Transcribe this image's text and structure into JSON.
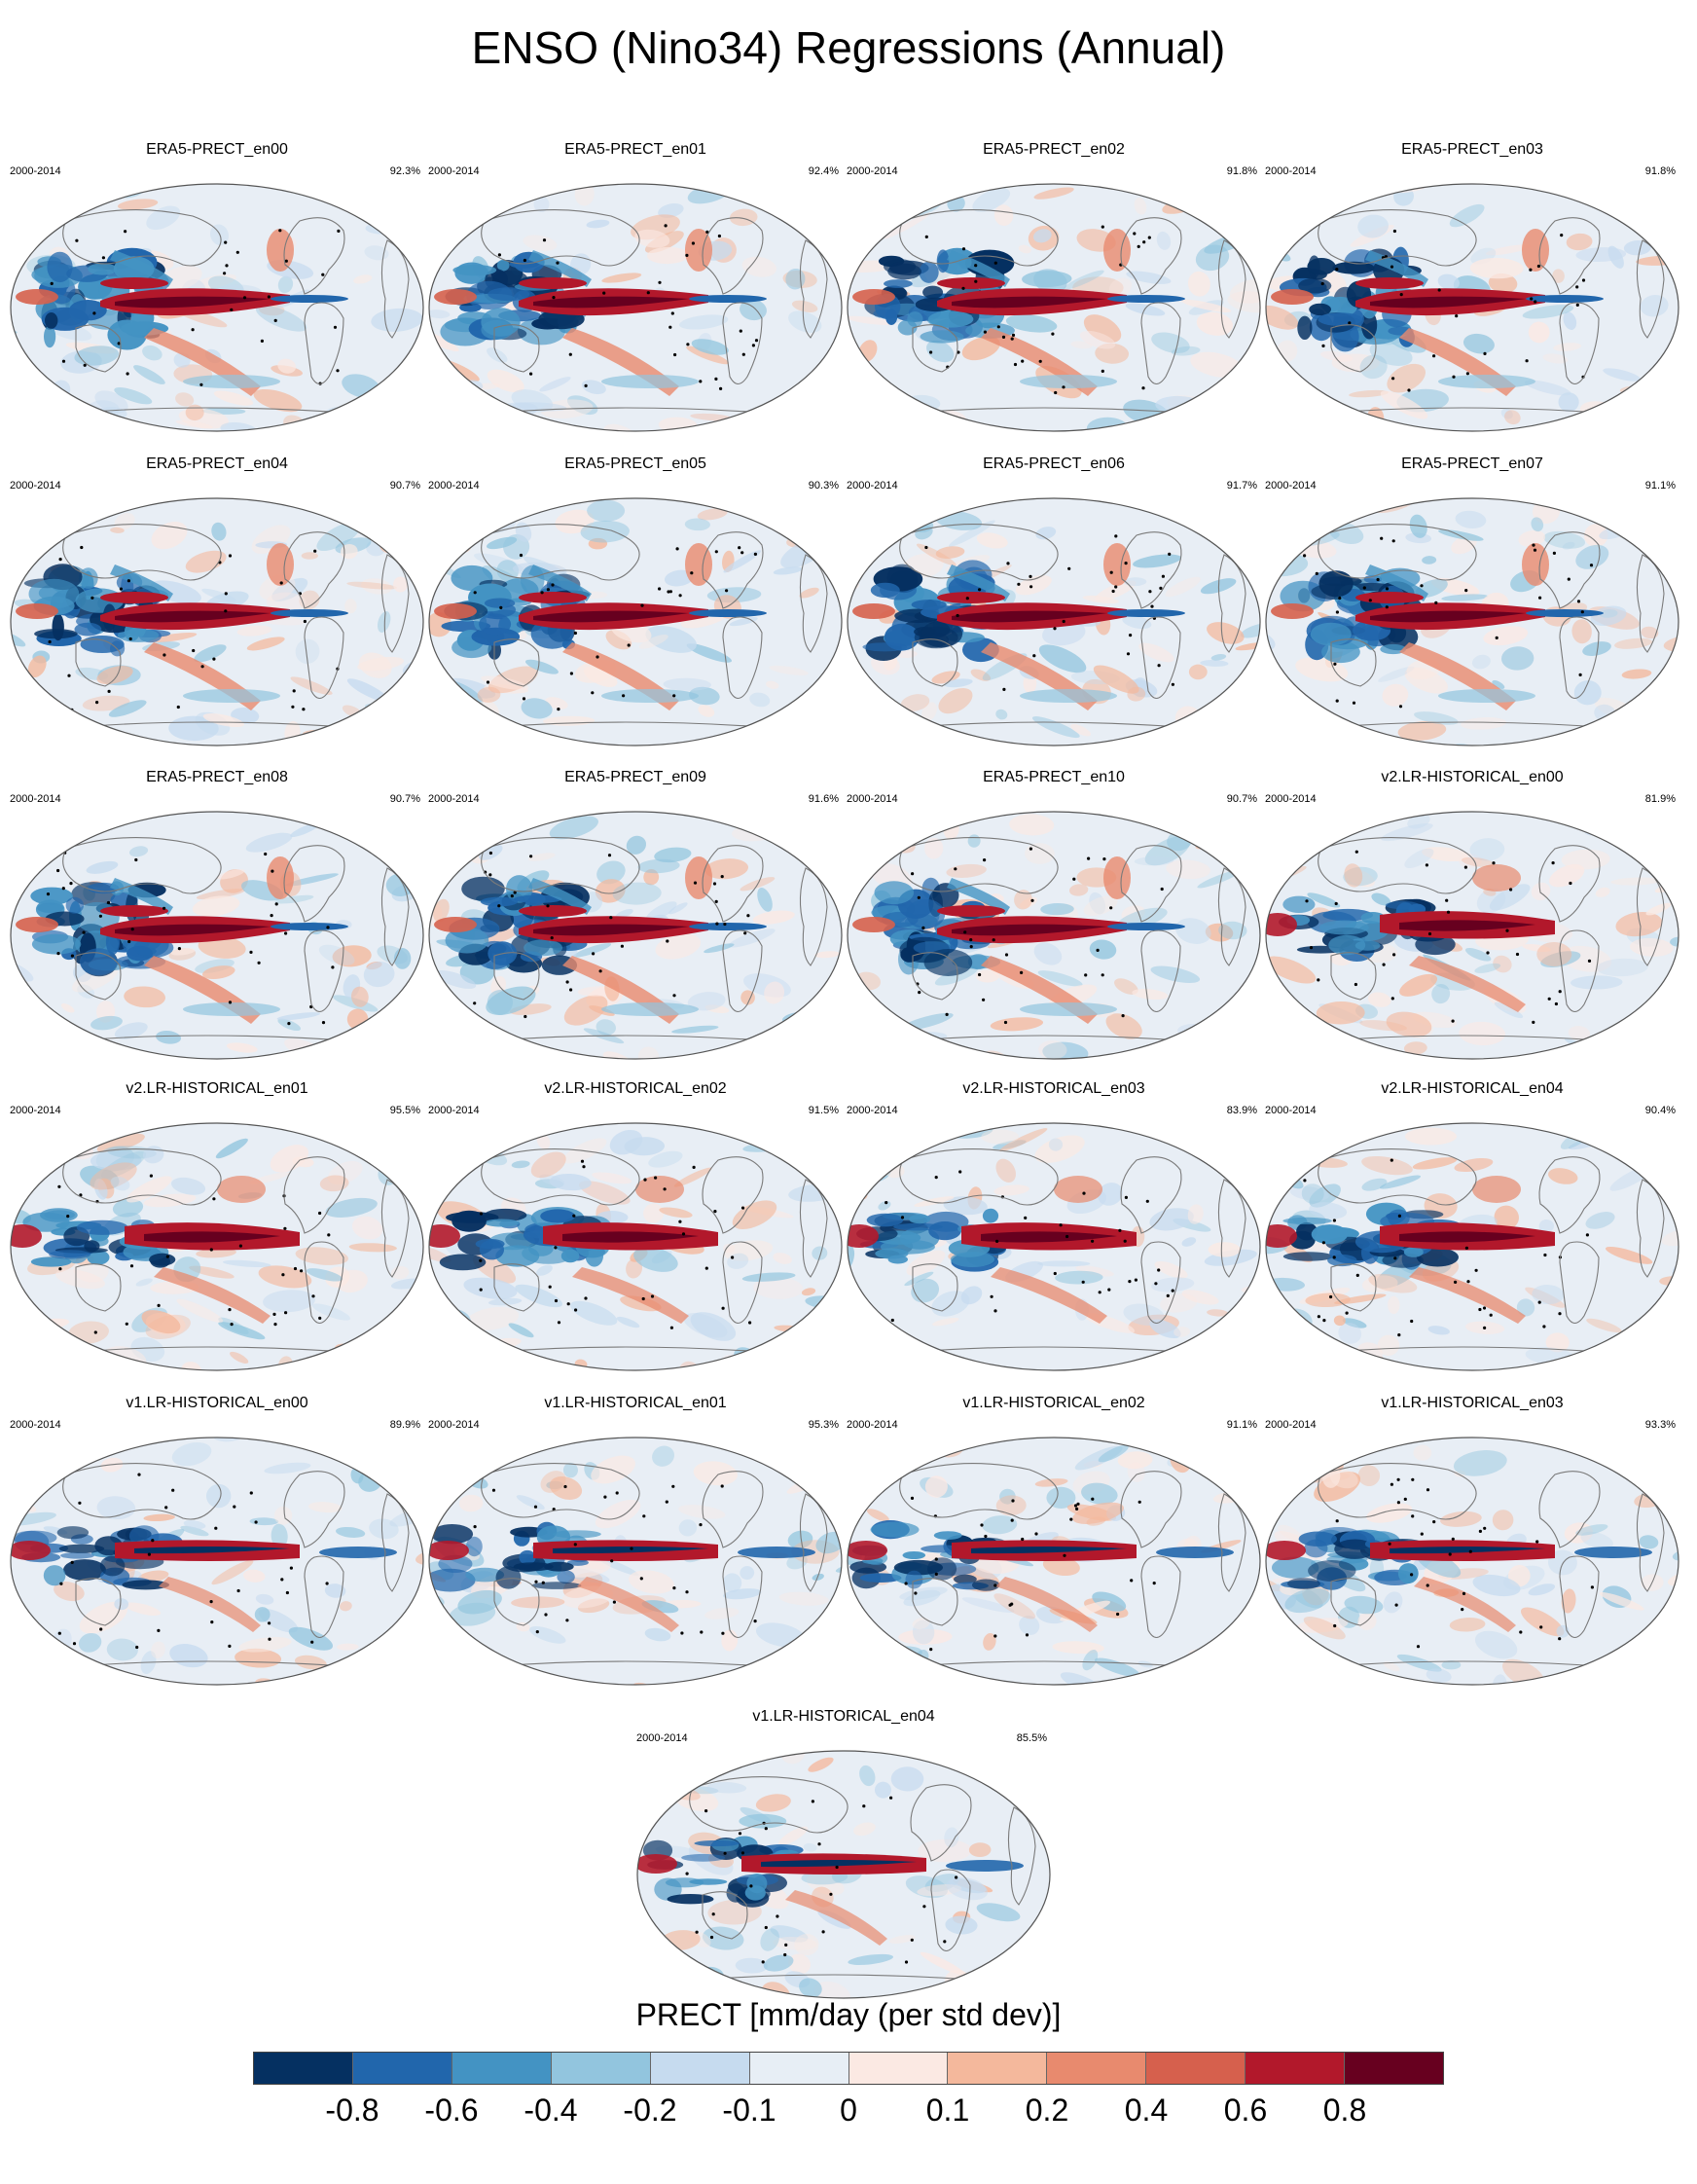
{
  "title": "ENSO (Nino34) Regressions (Annual)",
  "panels": [
    {
      "name": "ERA5-PRECT_en00",
      "years": "2000-2014",
      "pct": "92.3%",
      "type": "era5"
    },
    {
      "name": "ERA5-PRECT_en01",
      "years": "2000-2014",
      "pct": "92.4%",
      "type": "era5"
    },
    {
      "name": "ERA5-PRECT_en02",
      "years": "2000-2014",
      "pct": "91.8%",
      "type": "era5"
    },
    {
      "name": "ERA5-PRECT_en03",
      "years": "2000-2014",
      "pct": "91.8%",
      "type": "era5"
    },
    {
      "name": "ERA5-PRECT_en04",
      "years": "2000-2014",
      "pct": "90.7%",
      "type": "era5"
    },
    {
      "name": "ERA5-PRECT_en05",
      "years": "2000-2014",
      "pct": "90.3%",
      "type": "era5"
    },
    {
      "name": "ERA5-PRECT_en06",
      "years": "2000-2014",
      "pct": "91.7%",
      "type": "era5"
    },
    {
      "name": "ERA5-PRECT_en07",
      "years": "2000-2014",
      "pct": "91.1%",
      "type": "era5"
    },
    {
      "name": "ERA5-PRECT_en08",
      "years": "2000-2014",
      "pct": "90.7%",
      "type": "era5"
    },
    {
      "name": "ERA5-PRECT_en09",
      "years": "2000-2014",
      "pct": "91.6%",
      "type": "era5"
    },
    {
      "name": "ERA5-PRECT_en10",
      "years": "2000-2014",
      "pct": "90.7%",
      "type": "era5"
    },
    {
      "name": "v2.LR-HISTORICAL_en00",
      "years": "2000-2014",
      "pct": "81.9%",
      "type": "v2"
    },
    {
      "name": "v2.LR-HISTORICAL_en01",
      "years": "2000-2014",
      "pct": "95.5%",
      "type": "v2"
    },
    {
      "name": "v2.LR-HISTORICAL_en02",
      "years": "2000-2014",
      "pct": "91.5%",
      "type": "v2"
    },
    {
      "name": "v2.LR-HISTORICAL_en03",
      "years": "2000-2014",
      "pct": "83.9%",
      "type": "v2"
    },
    {
      "name": "v2.LR-HISTORICAL_en04",
      "years": "2000-2014",
      "pct": "90.4%",
      "type": "v2"
    },
    {
      "name": "v1.LR-HISTORICAL_en00",
      "years": "2000-2014",
      "pct": "89.9%",
      "type": "v1"
    },
    {
      "name": "v1.LR-HISTORICAL_en01",
      "years": "2000-2014",
      "pct": "95.3%",
      "type": "v1"
    },
    {
      "name": "v1.LR-HISTORICAL_en02",
      "years": "2000-2014",
      "pct": "91.1%",
      "type": "v1"
    },
    {
      "name": "v1.LR-HISTORICAL_en03",
      "years": "2000-2014",
      "pct": "93.3%",
      "type": "v1"
    },
    {
      "name": "v1.LR-HISTORICAL_en04",
      "years": "2000-2014",
      "pct": "85.5%",
      "type": "v1"
    }
  ],
  "colorbar": {
    "title": "PRECT [mm/day (per std dev)]",
    "colors": [
      "#053061",
      "#2166ac",
      "#4393c3",
      "#92c5de",
      "#c6dbef",
      "#e7eef5",
      "#fbe9e3",
      "#f4b89c",
      "#e88a6e",
      "#d6604d",
      "#b2182b",
      "#67001f"
    ],
    "ticks": [
      "-0.8",
      "-0.6",
      "-0.4",
      "-0.2",
      "-0.1",
      "0",
      "0.1",
      "0.2",
      "0.4",
      "0.6",
      "0.8"
    ]
  },
  "colors": {
    "background": "#e8eef5",
    "coast": "#7a7a7a",
    "outline": "#555555"
  }
}
